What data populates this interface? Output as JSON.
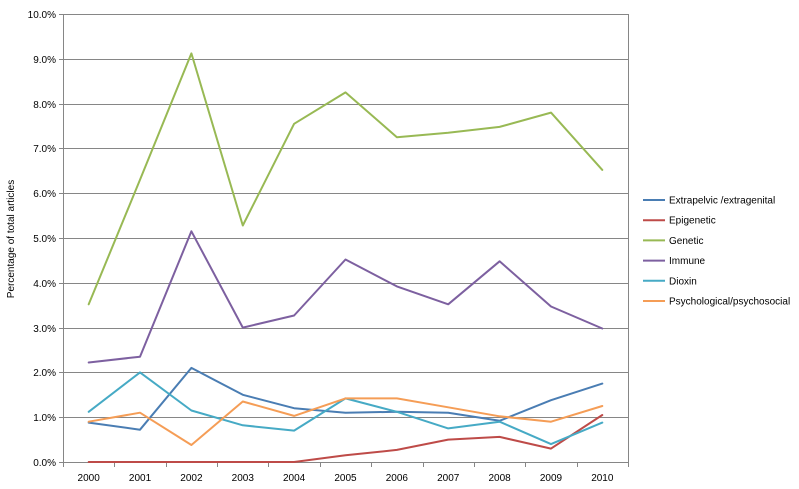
{
  "chart_data": {
    "type": "line",
    "title": "",
    "xlabel": "",
    "ylabel": "Percentage of total articles",
    "categories": [
      "2000",
      "2001",
      "2002",
      "2003",
      "2004",
      "2005",
      "2006",
      "2007",
      "2008",
      "2009",
      "2010"
    ],
    "ylim": [
      0,
      10
    ],
    "y_ticks": [
      "0.0%",
      "1.0%",
      "2.0%",
      "3.0%",
      "4.0%",
      "5.0%",
      "6.0%",
      "7.0%",
      "8.0%",
      "9.0%",
      "10.0%"
    ],
    "grid": true,
    "legend_position": "right",
    "series": [
      {
        "name": "Extrapelvic /extragenital",
        "color": "#4a7db3",
        "values": [
          0.88,
          0.72,
          2.1,
          1.5,
          1.2,
          1.1,
          1.12,
          1.1,
          0.92,
          1.38,
          1.75
        ]
      },
      {
        "name": "Epigenetic",
        "color": "#be4b48",
        "values": [
          0.0,
          0.0,
          0.0,
          0.0,
          0.0,
          0.15,
          0.27,
          0.5,
          0.56,
          0.3,
          1.05
        ]
      },
      {
        "name": "Genetic",
        "color": "#98b954",
        "values": [
          3.52,
          6.3,
          9.12,
          5.28,
          7.55,
          8.25,
          7.25,
          7.35,
          7.48,
          7.8,
          6.52
        ]
      },
      {
        "name": "Immune",
        "color": "#7d60a0",
        "values": [
          2.22,
          2.35,
          5.15,
          3.0,
          3.27,
          4.52,
          3.92,
          3.52,
          4.48,
          3.47,
          2.98
        ]
      },
      {
        "name": "Dioxin",
        "color": "#46aac5",
        "values": [
          1.12,
          2.0,
          1.15,
          0.82,
          0.7,
          1.42,
          1.12,
          0.75,
          0.9,
          0.4,
          0.88
        ]
      },
      {
        "name": "Psychological/psychosocial",
        "color": "#f59d56",
        "values": [
          0.9,
          1.1,
          0.38,
          1.35,
          1.03,
          1.42,
          1.42,
          1.22,
          1.02,
          0.9,
          1.25
        ]
      }
    ]
  }
}
